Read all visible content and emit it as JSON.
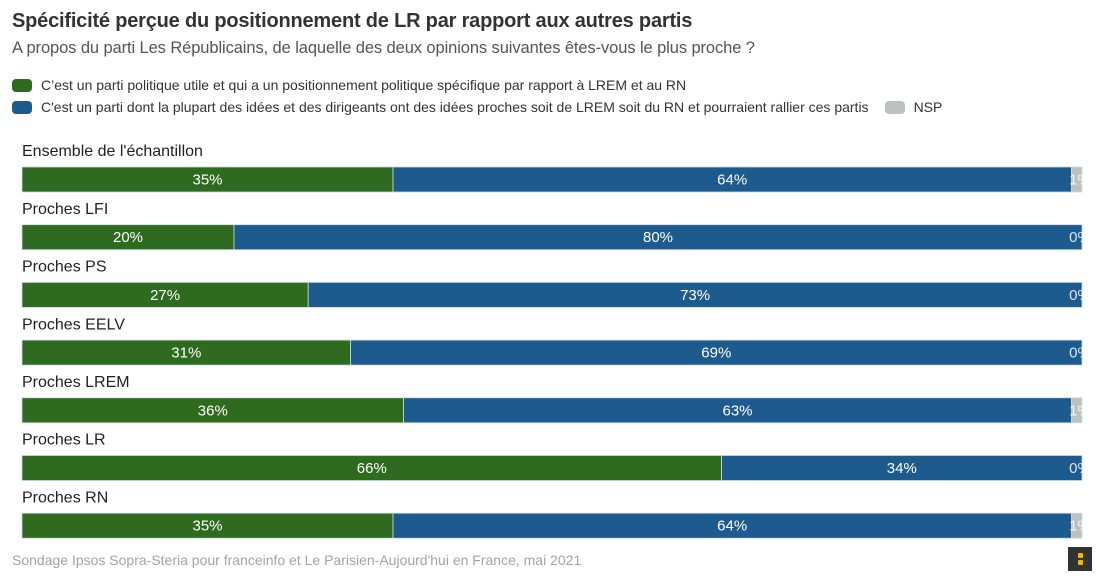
{
  "chart_data": {
    "type": "bar",
    "orientation": "horizontal",
    "stacked": true,
    "title": "Spécificité perçue du positionnement de LR par rapport aux autres partis",
    "subtitle": "A propos du parti Les Républicains, de laquelle des deux opinions suivantes êtes-vous le plus proche ?",
    "xlabel": "",
    "ylabel": "",
    "xlim": [
      0,
      100
    ],
    "grid": false,
    "legend_position": "top-left",
    "categories": [
      "Ensemble de l'échantillon",
      "Proches LFI",
      "Proches PS",
      "Proches EELV",
      "Proches LREM",
      "Proches LR",
      "Proches RN"
    ],
    "series": [
      {
        "name": "C’est un parti politique utile et qui a un positionnement politique spécifique par rapport à LREM et au RN",
        "color": "#2e6b1f",
        "values": [
          35,
          20,
          27,
          31,
          36,
          66,
          35
        ]
      },
      {
        "name": "C'est un parti dont la plupart des idées et des dirigeants ont des idées proches soit de LREM soit du RN et pourraient rallier ces partis",
        "color": "#1d5a8e",
        "values": [
          64,
          80,
          73,
          69,
          63,
          34,
          64
        ]
      },
      {
        "name": "NSP",
        "color": "#bfc1c0",
        "values": [
          1,
          0,
          0,
          0,
          1,
          0,
          1
        ]
      }
    ],
    "value_suffix": "%",
    "source": "Sondage Ipsos Sopra-Steria pour franceinfo et Le Parisien-Aujourd'hui en France, mai 2021"
  },
  "legend": {
    "items": [
      "C’est un parti politique utile et qui a un positionnement politique spécifique par rapport à LREM et au RN",
      "C'est un parti dont la plupart des idées et des dirigeants ont des idées proches soit de LREM soit du RN et pourraient rallier ces partis",
      "NSP"
    ]
  },
  "footer": {
    "source": "Sondage Ipsos Sopra-Steria pour franceinfo et Le Parisien-Aujourd'hui en France, mai 2021"
  },
  "branding": {
    "logo_icon": "flourish-logo-icon",
    "logo_color": "#f5b800"
  }
}
